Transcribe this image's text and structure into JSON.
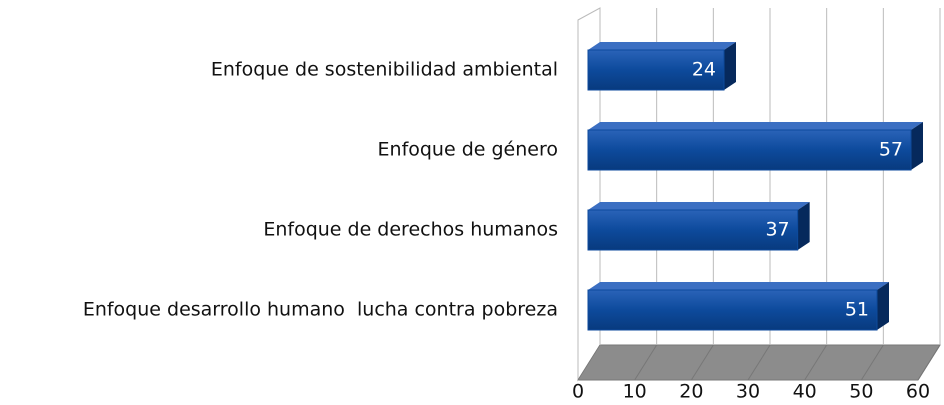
{
  "chart_data": {
    "type": "bar3d-horizontal",
    "categories": [
      "Enfoque de sostenibilidad ambiental",
      "Enfoque de género",
      "Enfoque de derechos humanos",
      "Enfoque desarrollo humano  lucha contra pobreza"
    ],
    "values": [
      24,
      57,
      37,
      51
    ],
    "color": "#0d4a9c",
    "xlim": [
      0,
      60
    ],
    "xticks": [
      0,
      10,
      20,
      30,
      40,
      50,
      60
    ],
    "grid": true
  }
}
